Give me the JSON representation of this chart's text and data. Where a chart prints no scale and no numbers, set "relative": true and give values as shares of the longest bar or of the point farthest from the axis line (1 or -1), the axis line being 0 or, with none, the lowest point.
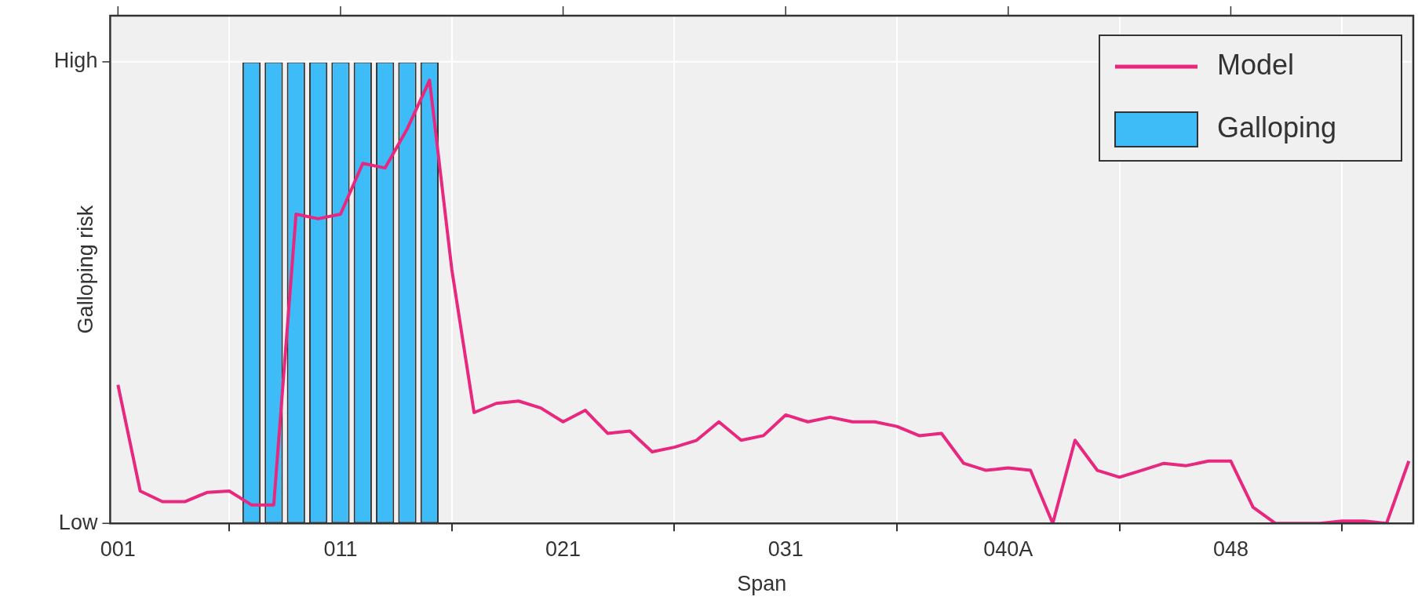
{
  "chart_data": {
    "type": "line",
    "xlabel": "Span",
    "ylabel": "Galloping risk",
    "categories": [
      "001",
      null,
      null,
      null,
      null,
      null,
      null,
      null,
      null,
      null,
      "011",
      null,
      null,
      null,
      null,
      null,
      null,
      null,
      null,
      null,
      "021",
      null,
      null,
      null,
      null,
      null,
      null,
      null,
      null,
      null,
      "031",
      null,
      null,
      null,
      null,
      null,
      null,
      null,
      null,
      null,
      "040A",
      null,
      null,
      null,
      null,
      null,
      null,
      null,
      null,
      null,
      "048",
      null,
      null,
      null,
      null,
      null,
      null,
      null,
      null
    ],
    "series": [
      {
        "name": "Model",
        "type": "line",
        "color": "#e8287f",
        "values": [
          0.3,
          0.07,
          0.047,
          0.047,
          0.067,
          0.07,
          0.04,
          0.04,
          0.67,
          0.66,
          0.67,
          0.78,
          0.77,
          0.855,
          0.96,
          0.55,
          0.24,
          0.26,
          0.265,
          0.25,
          0.22,
          0.245,
          0.195,
          0.2,
          0.155,
          0.165,
          0.18,
          0.22,
          0.18,
          0.19,
          0.235,
          0.22,
          0.23,
          0.22,
          0.22,
          0.21,
          0.19,
          0.195,
          0.13,
          0.115,
          0.12,
          0.115,
          0,
          0.18,
          0.115,
          0.1,
          0.115,
          0.13,
          0.125,
          0.135,
          0.135,
          0.035,
          0,
          0,
          0,
          0.005,
          0.005,
          0,
          0.135
        ]
      },
      {
        "name": "Galloping",
        "type": "bar",
        "color": "#3dbcf7",
        "values": [
          null,
          null,
          null,
          null,
          null,
          null,
          1,
          1,
          1,
          1,
          1,
          1,
          1,
          1,
          1,
          null,
          null,
          null,
          null,
          null,
          null,
          null,
          null,
          null,
          null,
          null,
          null,
          null,
          null,
          null,
          null,
          null,
          null,
          null,
          null,
          null,
          null,
          null,
          null,
          null,
          null,
          null,
          null,
          null,
          null,
          null,
          null,
          null,
          null,
          null,
          null,
          null,
          null,
          null,
          null,
          null,
          null,
          null,
          null
        ]
      }
    ],
    "relative": true,
    "annotations": [
      "Low",
      "High"
    ],
    "grid": "x",
    "legend": "top right"
  }
}
